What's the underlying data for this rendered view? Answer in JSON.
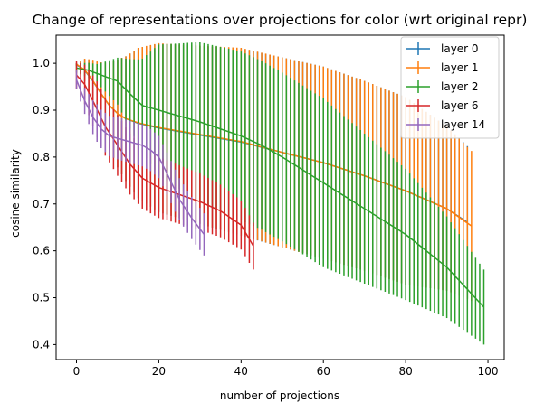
{
  "chart_data": {
    "type": "line",
    "title": "Change of representations over projections for color (wrt original repr)",
    "xlabel": "number of projections",
    "ylabel": "cosine similarity",
    "xlim": [
      -4.95,
      103.95
    ],
    "ylim": [
      0.368,
      1.06
    ],
    "xticks": [
      0,
      20,
      40,
      60,
      80,
      100
    ],
    "yticks": [
      0.4,
      0.5,
      0.6,
      0.7,
      0.8,
      0.9,
      1.0
    ],
    "xtick_labels": [
      "0",
      "20",
      "40",
      "60",
      "80",
      "100"
    ],
    "ytick_labels": [
      "0.4",
      "0.5",
      "0.6",
      "0.7",
      "0.8",
      "0.9",
      "1.0"
    ],
    "grid": false,
    "legend_position": "top-right",
    "errorbars": true,
    "series": [
      {
        "name": "layer 0",
        "color": "#1f77b4",
        "n": 96,
        "mean": [
          [
            0,
            0.997
          ],
          [
            2,
            0.985
          ],
          [
            4,
            0.962
          ],
          [
            6,
            0.935
          ],
          [
            8,
            0.91
          ],
          [
            10,
            0.893
          ],
          [
            12,
            0.882
          ],
          [
            15,
            0.872
          ],
          [
            20,
            0.862
          ],
          [
            30,
            0.847
          ],
          [
            40,
            0.832
          ],
          [
            50,
            0.81
          ],
          [
            60,
            0.788
          ],
          [
            70,
            0.76
          ],
          [
            80,
            0.728
          ],
          [
            90,
            0.69
          ],
          [
            96,
            0.655
          ]
        ],
        "err": [
          [
            0,
            0.003
          ],
          [
            5,
            0.055
          ],
          [
            10,
            0.115
          ],
          [
            15,
            0.16
          ],
          [
            20,
            0.18
          ],
          [
            30,
            0.19
          ],
          [
            40,
            0.2
          ],
          [
            60,
            0.205
          ],
          [
            80,
            0.2
          ],
          [
            96,
            0.16
          ]
        ]
      },
      {
        "name": "layer 1",
        "color": "#ff7f0e",
        "n": 97,
        "mean": [
          [
            0,
            0.998
          ],
          [
            2,
            0.986
          ],
          [
            4,
            0.963
          ],
          [
            6,
            0.935
          ],
          [
            8,
            0.91
          ],
          [
            10,
            0.893
          ],
          [
            12,
            0.882
          ],
          [
            15,
            0.873
          ],
          [
            20,
            0.863
          ],
          [
            30,
            0.848
          ],
          [
            40,
            0.833
          ],
          [
            50,
            0.81
          ],
          [
            60,
            0.788
          ],
          [
            70,
            0.76
          ],
          [
            80,
            0.728
          ],
          [
            90,
            0.69
          ],
          [
            96,
            0.653
          ]
        ],
        "err": [
          [
            0,
            0.003
          ],
          [
            5,
            0.055
          ],
          [
            10,
            0.115
          ],
          [
            15,
            0.16
          ],
          [
            20,
            0.18
          ],
          [
            30,
            0.19
          ],
          [
            40,
            0.2
          ],
          [
            60,
            0.205
          ],
          [
            80,
            0.2
          ],
          [
            96,
            0.16
          ]
        ]
      },
      {
        "name": "layer 2",
        "color": "#2ca02c",
        "n": 100,
        "mean": [
          [
            0,
            0.99
          ],
          [
            3,
            0.985
          ],
          [
            6,
            0.975
          ],
          [
            10,
            0.962
          ],
          [
            13,
            0.935
          ],
          [
            16,
            0.91
          ],
          [
            20,
            0.9
          ],
          [
            30,
            0.875
          ],
          [
            40,
            0.845
          ],
          [
            45,
            0.825
          ],
          [
            50,
            0.8
          ],
          [
            60,
            0.745
          ],
          [
            70,
            0.69
          ],
          [
            80,
            0.635
          ],
          [
            90,
            0.565
          ],
          [
            99,
            0.48
          ]
        ],
        "err": [
          [
            0,
            0.01
          ],
          [
            5,
            0.02
          ],
          [
            10,
            0.05
          ],
          [
            15,
            0.09
          ],
          [
            20,
            0.14
          ],
          [
            30,
            0.17
          ],
          [
            40,
            0.18
          ],
          [
            60,
            0.18
          ],
          [
            80,
            0.14
          ],
          [
            99,
            0.08
          ]
        ]
      },
      {
        "name": "layer 6",
        "color": "#d62728",
        "n": 44,
        "mean": [
          [
            0,
            0.975
          ],
          [
            2,
            0.955
          ],
          [
            4,
            0.92
          ],
          [
            7,
            0.865
          ],
          [
            10,
            0.825
          ],
          [
            13,
            0.785
          ],
          [
            16,
            0.755
          ],
          [
            20,
            0.735
          ],
          [
            25,
            0.72
          ],
          [
            30,
            0.705
          ],
          [
            35,
            0.685
          ],
          [
            40,
            0.655
          ],
          [
            43,
            0.61
          ]
        ],
        "err": [
          [
            0,
            0.03
          ],
          [
            5,
            0.06
          ],
          [
            10,
            0.065
          ],
          [
            20,
            0.065
          ],
          [
            30,
            0.06
          ],
          [
            43,
            0.05
          ]
        ]
      },
      {
        "name": "layer 14",
        "color": "#9467bd",
        "n": 32,
        "mean": [
          [
            0,
            0.965
          ],
          [
            2,
            0.92
          ],
          [
            4,
            0.885
          ],
          [
            6,
            0.86
          ],
          [
            8,
            0.845
          ],
          [
            12,
            0.835
          ],
          [
            16,
            0.825
          ],
          [
            18,
            0.815
          ],
          [
            20,
            0.8
          ],
          [
            22,
            0.765
          ],
          [
            25,
            0.71
          ],
          [
            28,
            0.67
          ],
          [
            31,
            0.635
          ]
        ],
        "err": [
          [
            0,
            0.02
          ],
          [
            5,
            0.04
          ],
          [
            10,
            0.045
          ],
          [
            20,
            0.045
          ],
          [
            31,
            0.045
          ]
        ]
      }
    ]
  }
}
